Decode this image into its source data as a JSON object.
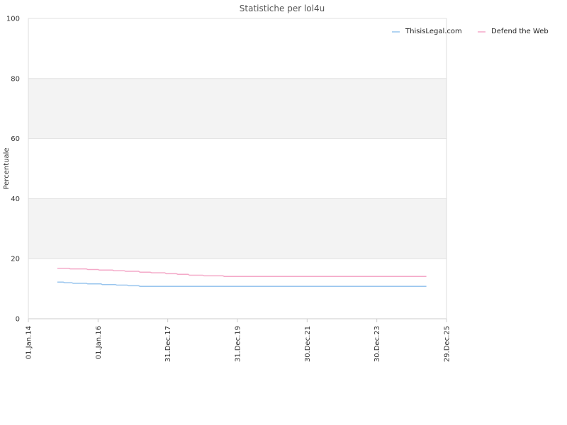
{
  "chart_data": {
    "type": "line",
    "title": "Statistiche per lol4u",
    "xlabel": "",
    "ylabel": "Percentuale",
    "ylim": [
      0,
      100
    ],
    "y_ticks": [
      "0",
      "20",
      "40",
      "60",
      "80",
      "100"
    ],
    "x_axis": {
      "type": "date",
      "min": "2014-01-01",
      "max": "2025-12-29",
      "tick_labels": [
        "01.Jan.14",
        "01.Jan.16",
        "31.Dec.17",
        "31.Dec.19",
        "30.Dec.21",
        "30.Dec.23",
        "29.Dec.25"
      ],
      "tick_dates": [
        "2014-01-01",
        "2016-01-01",
        "2017-12-31",
        "2019-12-31",
        "2021-12-30",
        "2023-12-30",
        "2025-12-29"
      ]
    },
    "grid": true,
    "legend": "top-right",
    "series": [
      {
        "name": "ThisisLegal.com",
        "color": "#99c5ee",
        "points": [
          {
            "x": "2014-11-01",
            "y": 12.2
          },
          {
            "x": "2015-01-01",
            "y": 12.2
          },
          {
            "x": "2015-01-15",
            "y": 12.0
          },
          {
            "x": "2015-04-01",
            "y": 12.0
          },
          {
            "x": "2015-04-15",
            "y": 11.8
          },
          {
            "x": "2015-09-01",
            "y": 11.8
          },
          {
            "x": "2015-09-15",
            "y": 11.6
          },
          {
            "x": "2016-02-01",
            "y": 11.6
          },
          {
            "x": "2016-02-15",
            "y": 11.4
          },
          {
            "x": "2016-07-01",
            "y": 11.4
          },
          {
            "x": "2016-07-15",
            "y": 11.2
          },
          {
            "x": "2016-11-01",
            "y": 11.2
          },
          {
            "x": "2016-11-15",
            "y": 11.0
          },
          {
            "x": "2017-03-01",
            "y": 11.0
          },
          {
            "x": "2017-03-15",
            "y": 10.8
          },
          {
            "x": "2025-06-01",
            "y": 10.8
          }
        ]
      },
      {
        "name": "Defend the Web",
        "color": "#f4a9c8",
        "points": [
          {
            "x": "2014-11-01",
            "y": 16.8
          },
          {
            "x": "2015-03-01",
            "y": 16.8
          },
          {
            "x": "2015-03-15",
            "y": 16.6
          },
          {
            "x": "2015-09-01",
            "y": 16.6
          },
          {
            "x": "2015-09-15",
            "y": 16.4
          },
          {
            "x": "2016-01-01",
            "y": 16.4
          },
          {
            "x": "2016-01-15",
            "y": 16.2
          },
          {
            "x": "2016-06-01",
            "y": 16.2
          },
          {
            "x": "2016-06-15",
            "y": 16.0
          },
          {
            "x": "2016-10-01",
            "y": 16.0
          },
          {
            "x": "2016-10-15",
            "y": 15.8
          },
          {
            "x": "2017-03-01",
            "y": 15.8
          },
          {
            "x": "2017-03-15",
            "y": 15.5
          },
          {
            "x": "2017-07-01",
            "y": 15.5
          },
          {
            "x": "2017-07-15",
            "y": 15.3
          },
          {
            "x": "2017-12-01",
            "y": 15.3
          },
          {
            "x": "2017-12-15",
            "y": 15.0
          },
          {
            "x": "2018-04-01",
            "y": 15.0
          },
          {
            "x": "2018-04-15",
            "y": 14.8
          },
          {
            "x": "2018-08-01",
            "y": 14.8
          },
          {
            "x": "2018-08-15",
            "y": 14.5
          },
          {
            "x": "2019-01-01",
            "y": 14.5
          },
          {
            "x": "2019-01-15",
            "y": 14.3
          },
          {
            "x": "2019-08-01",
            "y": 14.3
          },
          {
            "x": "2019-08-15",
            "y": 14.1
          },
          {
            "x": "2025-06-01",
            "y": 14.1
          }
        ]
      }
    ]
  }
}
